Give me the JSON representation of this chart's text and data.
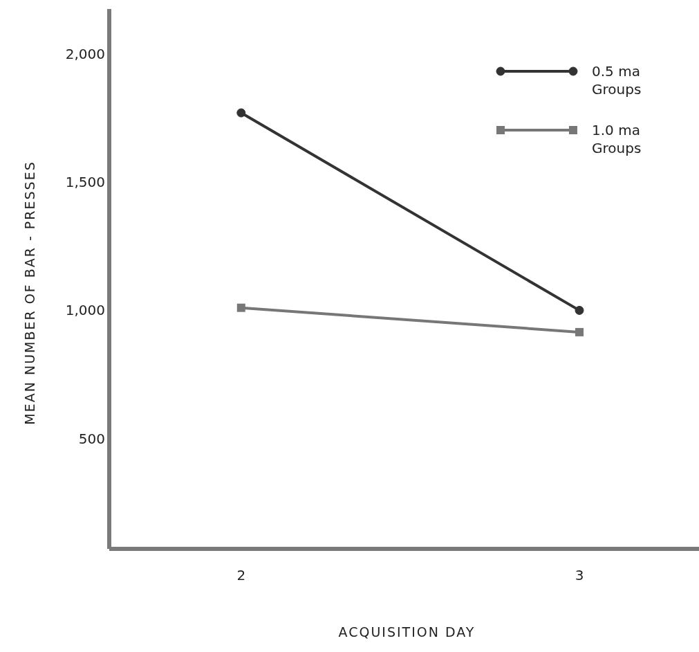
{
  "chart_data": {
    "type": "line",
    "xlabel": "ACQUISITION DAY",
    "ylabel": "MEAN NUMBER OF BAR - PRESSES",
    "x": [
      2,
      3
    ],
    "xlim": [
      1.61,
      3.37
    ],
    "xticks": [
      2,
      3
    ],
    "ylim": [
      70,
      2175
    ],
    "yticks": [
      {
        "value": 500,
        "label": "500"
      },
      {
        "value": 1000,
        "label": "1,000"
      },
      {
        "value": 1500,
        "label": "1,500"
      },
      {
        "value": 2000,
        "label": "2,000"
      }
    ],
    "series": [
      {
        "name": "0.5 ma Groups",
        "color": "#333333",
        "marker": "circle",
        "values": [
          1770,
          1000
        ]
      },
      {
        "name": "1.0 ma Groups",
        "color": "#777777",
        "marker": "square",
        "values": [
          1010,
          915
        ]
      }
    ],
    "legend": "top right",
    "grid": false,
    "line_style": "solid"
  }
}
